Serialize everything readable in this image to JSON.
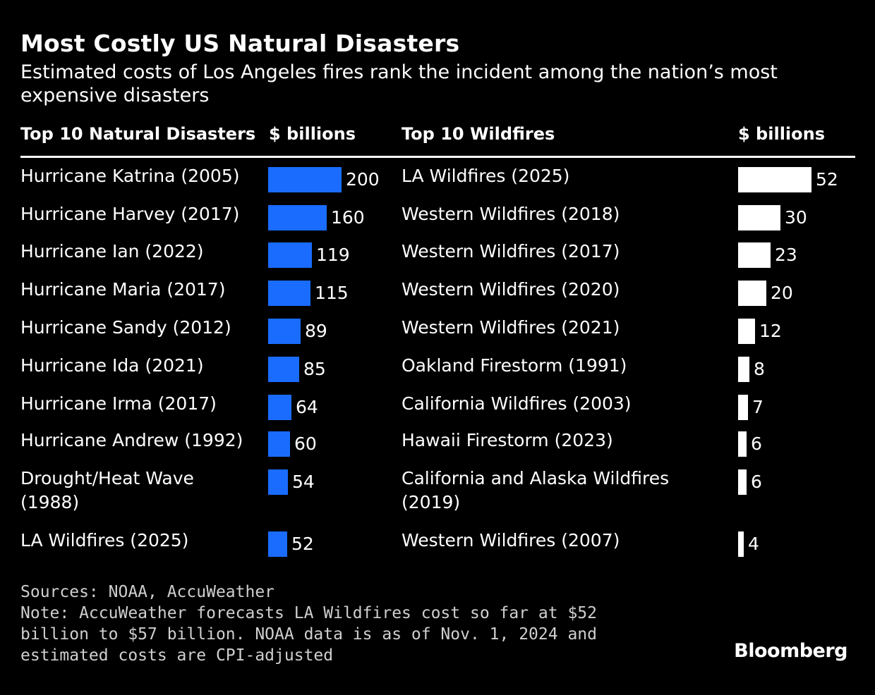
{
  "header": {
    "title": "Most Costly US Natural Disasters",
    "subtitle": "Estimated costs of Los Angeles fires rank the incident among the nation’s most expensive disasters"
  },
  "colors": {
    "background": "#000000",
    "text": "#ffffff",
    "disasters_bar": "#1a6cff",
    "wildfires_bar": "#ffffff"
  },
  "chart_data": [
    {
      "type": "bar",
      "orientation": "horizontal",
      "label_header": "Top 10 Natural Disasters",
      "value_header": "$ billions",
      "categories": [
        "Hurricane Katrina (2005)",
        "Hurricane Harvey (2017)",
        "Hurricane Ian (2022)",
        "Hurricane Maria (2017)",
        "Hurricane Sandy (2012)",
        "Hurricane Ida (2021)",
        "Hurricane Irma (2017)",
        "Hurricane Andrew (1992)",
        "Drought/Heat Wave (1988)",
        "LA Wildfires (2025)"
      ],
      "values": [
        200,
        160,
        119,
        115,
        89,
        85,
        64,
        60,
        54,
        52
      ],
      "color": "#1a6cff",
      "xlim": [
        0,
        200
      ]
    },
    {
      "type": "bar",
      "orientation": "horizontal",
      "label_header": "Top 10 Wildfires",
      "value_header": "$ billions",
      "categories": [
        "LA Wildfires (2025)",
        "Western Wildfires (2018)",
        "Western Wildfires (2017)",
        "Western Wildfires (2020)",
        "Western Wildfires (2021)",
        "Oakland Firestorm (1991)",
        "California Wildfires (2003)",
        "Hawaii Firestorm (2023)",
        "California and Alaska Wildfires (2019)",
        "Western Wildfires (2007)"
      ],
      "values": [
        52,
        30,
        23,
        20,
        12,
        8,
        7,
        6,
        6,
        4
      ],
      "color": "#ffffff",
      "xlim": [
        0,
        52
      ]
    }
  ],
  "footer": {
    "sources": "Sources: NOAA, AccuWeather",
    "note": "Note: AccuWeather forecasts LA Wildfires cost so far at $52 billion to $57 billion. NOAA data is as of Nov. 1, 2024 and estimated costs are CPI-adjusted",
    "brand": "Bloomberg"
  }
}
